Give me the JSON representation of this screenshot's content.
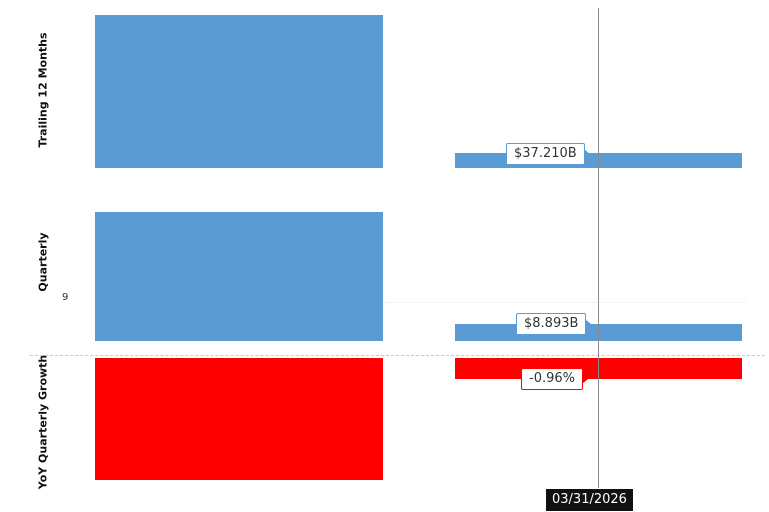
{
  "chart_data": {
    "type": "bar",
    "categories": [
      "",
      "03/31/2026"
    ],
    "panels": [
      {
        "id": "trailing",
        "label": "Trailing 12 Months",
        "color": "#5b9bd5",
        "values": [
          null,
          37.21
        ],
        "unit": "B",
        "callout": "$37.210B"
      },
      {
        "id": "quarterly",
        "label": "Quarterly",
        "color": "#5b9bd5",
        "values": [
          null,
          8.893
        ],
        "unit": "B",
        "callout": "$8.893B",
        "tick_label": "9"
      },
      {
        "id": "growth",
        "label": "YoY Quarterly Growth",
        "color": "#ff0000",
        "values": [
          null,
          -0.96
        ],
        "unit": "%",
        "callout": "-0.96%"
      }
    ],
    "cursor_date": "03/31/2026"
  }
}
